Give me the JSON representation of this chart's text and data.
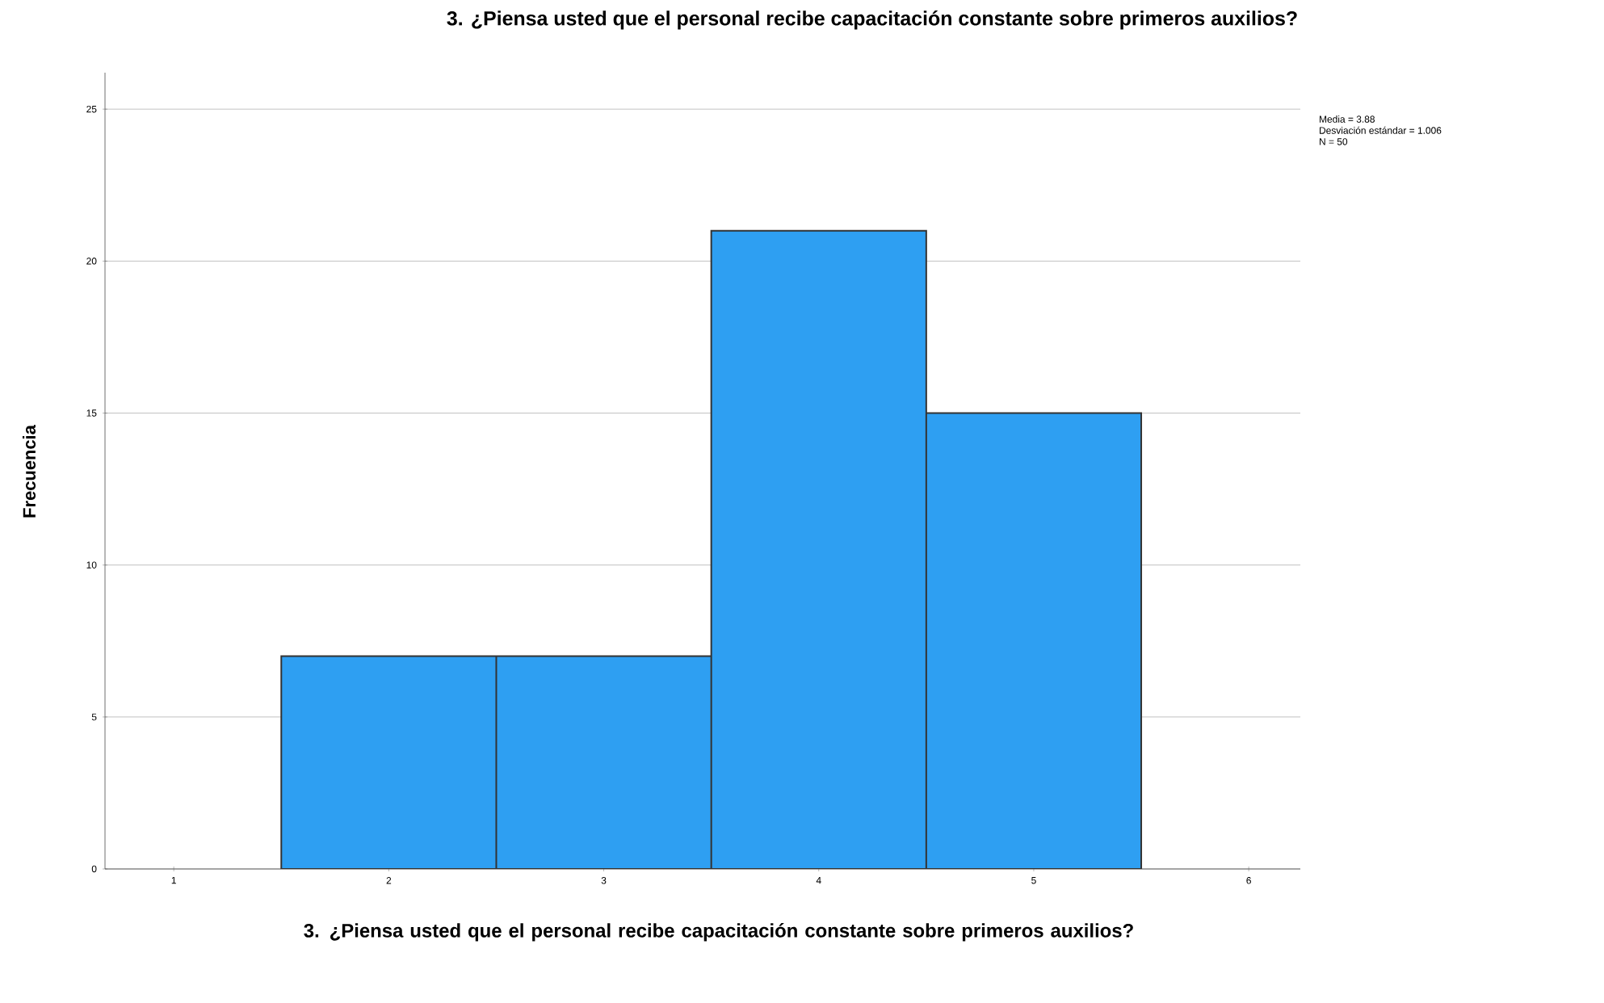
{
  "chart_data": {
    "type": "histogram",
    "title": "3. ¿Piensa usted que el personal recibe capacitación constante sobre primeros auxilios?",
    "xlabel": "3. ¿Piensa usted que el personal recibe capacitación constante sobre primeros auxilios?",
    "ylabel": "Frecuencia",
    "bins": [
      1.5,
      2.5,
      3.5,
      4.5,
      5.5
    ],
    "values": [
      7,
      7,
      21,
      15
    ],
    "color": "#2e9ff2",
    "xlim": [
      0.68,
      6.24
    ],
    "ylim": [
      0,
      26.2
    ],
    "xticks": [
      1,
      2,
      3,
      4,
      5,
      6
    ],
    "yticks": [
      0,
      5,
      10,
      15,
      20,
      25
    ],
    "grid": "y",
    "annotations": [
      "Media = 3.88",
      "Desviación estándar = 1.006",
      "N = 50"
    ]
  }
}
